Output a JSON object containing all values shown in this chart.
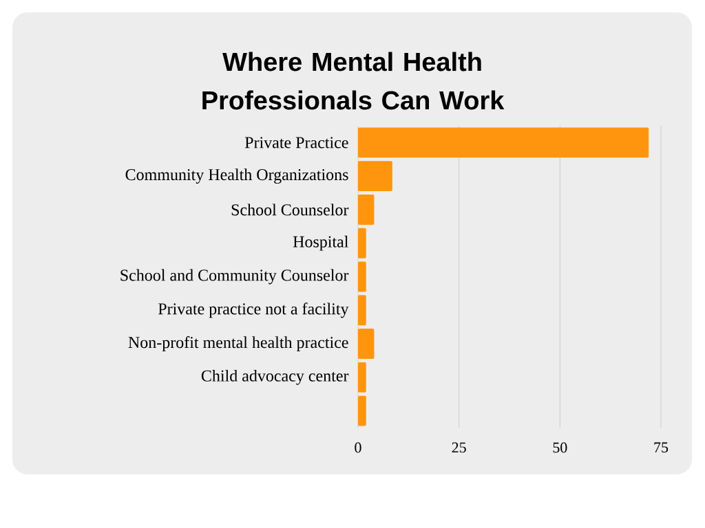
{
  "chart_data": {
    "type": "bar",
    "orientation": "horizontal",
    "title": "Where Mental Health Professionals Can Work",
    "categories": [
      "Private Practice",
      "Community Health Organizations",
      "School Counselor",
      "Hospital",
      "School and Community Counselor",
      "Private practice not a facility",
      "Non-profit mental health practice",
      "Child advocacy center",
      null
    ],
    "values": [
      72,
      8.5,
      4,
      2,
      2,
      2,
      4,
      2,
      2
    ],
    "color": "#ff950e",
    "xlim": [
      0,
      75
    ],
    "xticks": [
      0,
      25,
      50,
      75
    ],
    "grid": "x"
  }
}
